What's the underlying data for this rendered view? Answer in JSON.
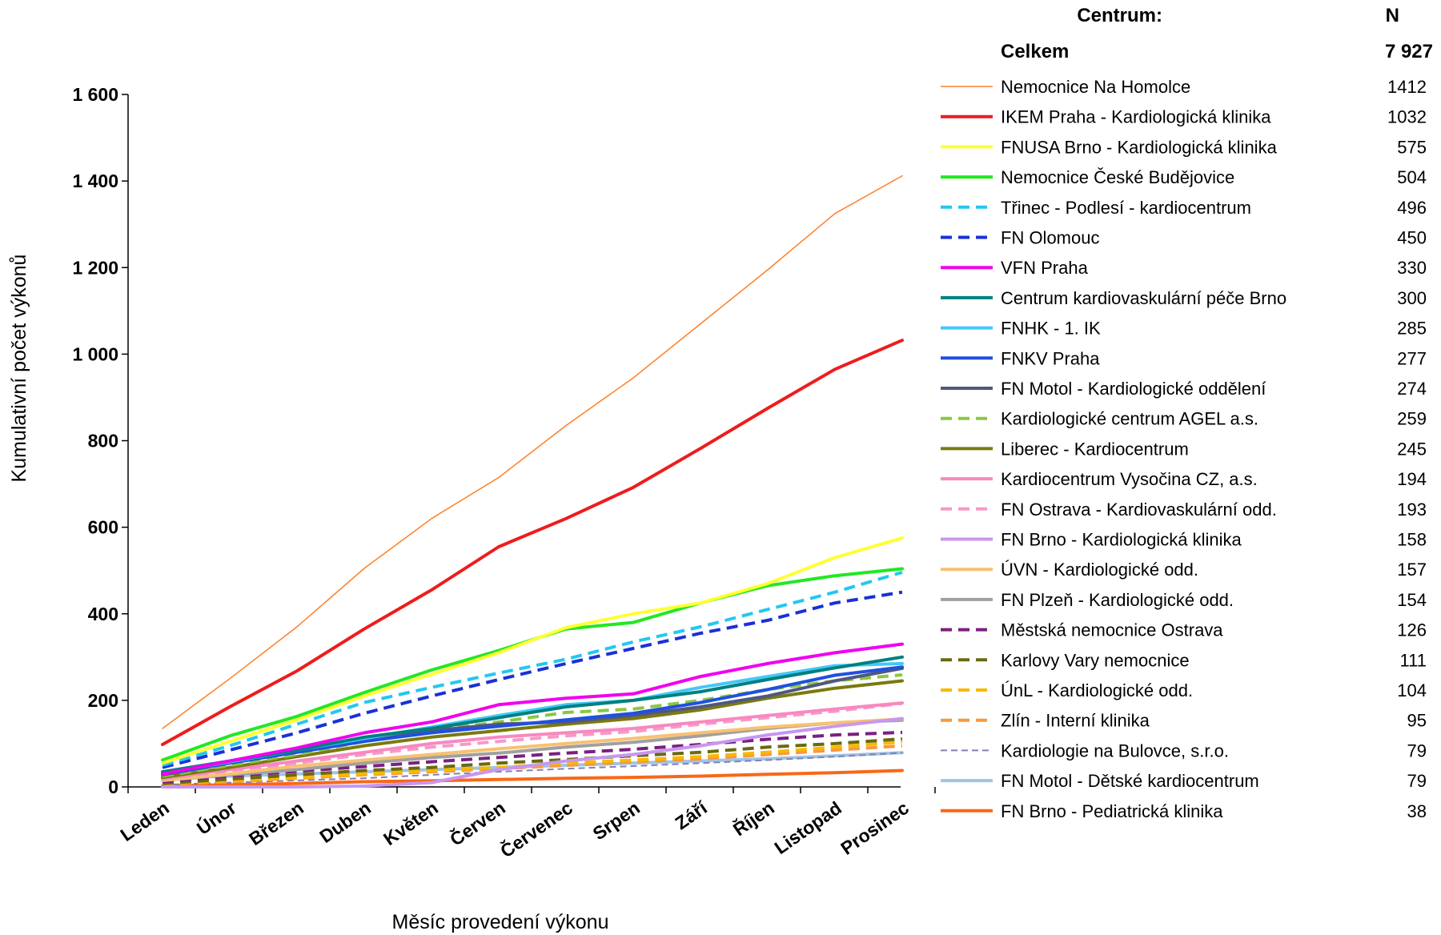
{
  "chart_data": {
    "type": "line",
    "xlabel": "Měsíc provedení výkonu",
    "ylabel": "Kumulativní počet výkonů",
    "ylim": [
      0,
      1600
    ],
    "y_ticks": [
      "0",
      "200",
      "400",
      "600",
      "800",
      "1 000",
      "1 200",
      "1 400",
      "1 600"
    ],
    "categories": [
      "Leden",
      "Únor",
      "Březen",
      "Duben",
      "Květen",
      "Červen",
      "Červenec",
      "Srpen",
      "Září",
      "Říjen",
      "Listopad",
      "Prosinec"
    ],
    "legend": {
      "header_label": "Centrum:",
      "header_n": "N",
      "total_label": "Celkem",
      "total_n": "7 927",
      "placement": "right"
    },
    "series": [
      {
        "name": "Nemocnice Na Homolce",
        "n": "1412",
        "color": "#ff7f27",
        "dash": "solid",
        "width": 1.5,
        "values": [
          135,
          250,
          370,
          505,
          620,
          715,
          835,
          945,
          1070,
          1195,
          1325,
          1412
        ]
      },
      {
        "name": "IKEM Praha - Kardiologická klinika",
        "n": "1032",
        "color": "#ee1c1c",
        "dash": "solid",
        "width": 4,
        "values": [
          98,
          185,
          268,
          365,
          455,
          555,
          620,
          692,
          782,
          875,
          965,
          1032
        ]
      },
      {
        "name": "FNUSA Brno - Kardiologická klinika",
        "n": "575",
        "color": "#ffff33",
        "dash": "solid",
        "width": 4,
        "values": [
          55,
          105,
          155,
          210,
          260,
          310,
          368,
          400,
          425,
          470,
          530,
          575
        ]
      },
      {
        "name": "Nemocnice České Budějovice",
        "n": "504",
        "color": "#22e822",
        "dash": "solid",
        "width": 4,
        "values": [
          62,
          118,
          163,
          218,
          270,
          315,
          365,
          380,
          425,
          465,
          488,
          504
        ]
      },
      {
        "name": "Třinec - Podlesí - kardiocentrum",
        "n": "496",
        "color": "#22c8f0",
        "dash": "dash",
        "width": 4,
        "values": [
          50,
          95,
          145,
          195,
          230,
          263,
          295,
          335,
          370,
          410,
          450,
          496
        ]
      },
      {
        "name": "FN Olomouc",
        "n": "450",
        "color": "#1a30d8",
        "dash": "dash",
        "width": 4,
        "values": [
          45,
          85,
          125,
          170,
          210,
          248,
          285,
          320,
          355,
          385,
          425,
          450
        ]
      },
      {
        "name": "VFN Praha",
        "n": "330",
        "color": "#f000f0",
        "dash": "solid",
        "width": 4,
        "values": [
          30,
          60,
          90,
          125,
          150,
          190,
          205,
          215,
          255,
          285,
          310,
          330
        ]
      },
      {
        "name": "Centrum kardiovaskulární péče Brno",
        "n": "300",
        "color": "#008080",
        "dash": "solid",
        "width": 4,
        "values": [
          35,
          60,
          85,
          115,
          135,
          160,
          185,
          200,
          220,
          248,
          275,
          300
        ]
      },
      {
        "name": "FNHK - 1. IK",
        "n": "285",
        "color": "#44c8f8",
        "dash": "solid",
        "width": 4,
        "values": [
          32,
          58,
          85,
          112,
          138,
          165,
          190,
          200,
          230,
          255,
          280,
          285
        ]
      },
      {
        "name": "FNKV Praha",
        "n": "277",
        "color": "#2050e0",
        "dash": "solid",
        "width": 4,
        "values": [
          30,
          55,
          80,
          105,
          125,
          140,
          155,
          170,
          195,
          225,
          258,
          277
        ]
      },
      {
        "name": "FN Motol - Kardiologické oddělení",
        "n": "274",
        "color": "#505880",
        "dash": "solid",
        "width": 4,
        "values": [
          28,
          55,
          85,
          108,
          130,
          145,
          150,
          165,
          185,
          210,
          245,
          274
        ]
      },
      {
        "name": "Kardiologické centrum AGEL a.s.",
        "n": "259",
        "color": "#8ac840",
        "dash": "dash",
        "width": 4,
        "values": [
          25,
          50,
          75,
          105,
          130,
          150,
          172,
          180,
          200,
          225,
          245,
          259
        ]
      },
      {
        "name": "Liberec - Kardiocentrum",
        "n": "245",
        "color": "#7a7a10",
        "dash": "solid",
        "width": 4,
        "values": [
          22,
          45,
          70,
          95,
          115,
          130,
          145,
          158,
          178,
          205,
          228,
          245
        ]
      },
      {
        "name": "Kardiocentrum Vysočina CZ, a.s.",
        "n": "194",
        "color": "#f888c0",
        "dash": "solid",
        "width": 4,
        "values": [
          20,
          40,
          60,
          80,
          100,
          115,
          125,
          135,
          150,
          165,
          180,
          194
        ]
      },
      {
        "name": "FN Ostrava - Kardiovaskulární odd.",
        "n": "193",
        "color": "#f898c8",
        "dash": "dash",
        "width": 4,
        "values": [
          18,
          38,
          55,
          75,
          92,
          105,
          118,
          128,
          145,
          160,
          175,
          193
        ]
      },
      {
        "name": "FN Brno - Kardiologická klinika",
        "n": "158",
        "color": "#c896f0",
        "dash": "solid",
        "width": 4,
        "values": [
          0,
          0,
          0,
          2,
          10,
          40,
          60,
          75,
          95,
          120,
          140,
          158
        ]
      },
      {
        "name": "ÚVN - Kardiologické odd.",
        "n": "157",
        "color": "#f8c070",
        "dash": "solid",
        "width": 4,
        "values": [
          15,
          30,
          48,
          62,
          75,
          88,
          100,
          112,
          125,
          138,
          148,
          157
        ]
      },
      {
        "name": "FN Plzeň - Kardiologické odd.",
        "n": "154",
        "color": "#a0a0a0",
        "dash": "solid",
        "width": 4,
        "values": [
          15,
          28,
          40,
          55,
          68,
          78,
          92,
          103,
          118,
          135,
          148,
          154
        ]
      },
      {
        "name": "Městská nemocnice Ostrava",
        "n": "126",
        "color": "#7a2080",
        "dash": "dash",
        "width": 4,
        "values": [
          12,
          25,
          36,
          47,
          58,
          68,
          78,
          87,
          98,
          110,
          120,
          126
        ]
      },
      {
        "name": "Karlovy Vary nemocnice",
        "n": "111",
        "color": "#6a6a10",
        "dash": "dash",
        "width": 4,
        "values": [
          8,
          18,
          28,
          38,
          45,
          55,
          63,
          72,
          80,
          92,
          100,
          111
        ]
      },
      {
        "name": "ÚnL - Kardiologické odd.",
        "n": "104",
        "color": "#f8b800",
        "dash": "dash",
        "width": 4,
        "values": [
          8,
          15,
          22,
          30,
          38,
          45,
          55,
          62,
          70,
          80,
          92,
          104
        ]
      },
      {
        "name": "Zlín - Interní klinika",
        "n": "95",
        "color": "#f89840",
        "dash": "dash",
        "width": 4,
        "values": [
          6,
          12,
          20,
          28,
          35,
          42,
          50,
          58,
          65,
          75,
          85,
          95
        ]
      },
      {
        "name": "Kardiologie na Bulovce, s.r.o.",
        "n": "79",
        "color": "#8080b8",
        "dash": "dash-thin",
        "width": 2,
        "values": [
          5,
          10,
          15,
          20,
          28,
          35,
          42,
          48,
          55,
          62,
          70,
          79
        ]
      },
      {
        "name": "FN Motol - Dětské kardiocentrum",
        "n": "79",
        "color": "#a0c4e4",
        "dash": "solid",
        "width": 4,
        "values": [
          20,
          25,
          30,
          35,
          40,
          45,
          50,
          55,
          60,
          65,
          72,
          79
        ]
      },
      {
        "name": "FN Brno - Pediatrická klinika",
        "n": "38",
        "color": "#f86818",
        "dash": "solid",
        "width": 4,
        "values": [
          2,
          5,
          8,
          12,
          14,
          17,
          20,
          22,
          25,
          29,
          33,
          38
        ]
      }
    ]
  }
}
